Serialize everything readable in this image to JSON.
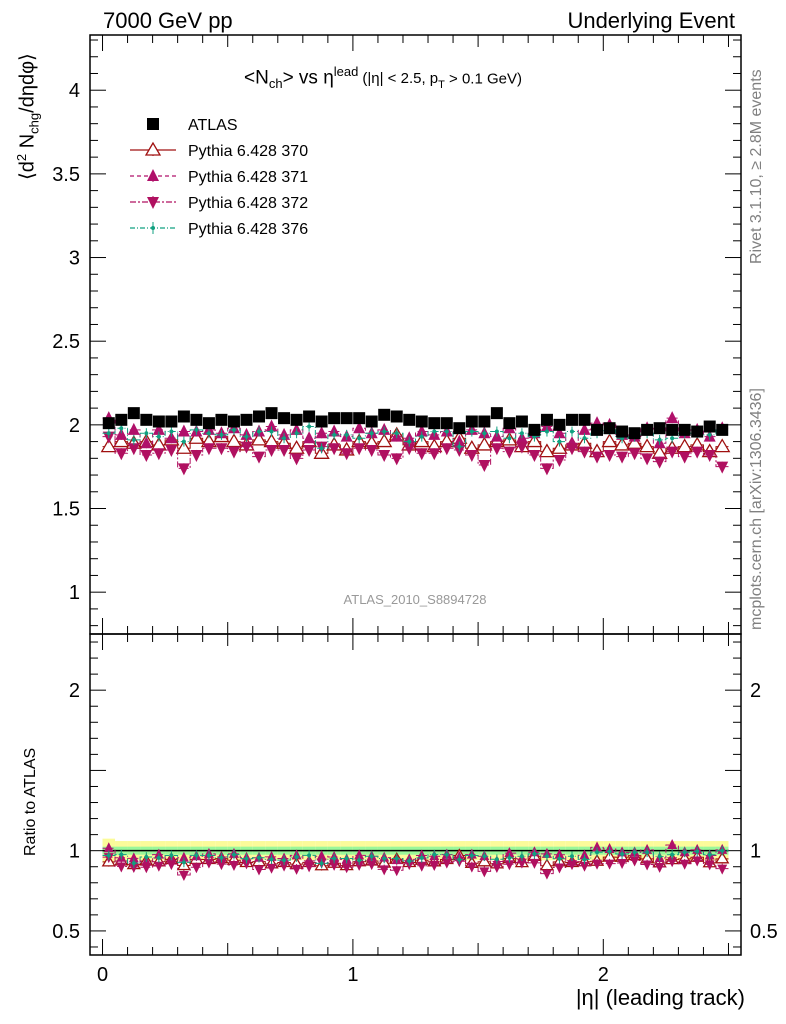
{
  "header": {
    "left": "7000 GeV pp",
    "right": "Underlying Event"
  },
  "side_labels": {
    "rivet": "Rivet 3.1.10, ≥ 2.8M events",
    "mcplots": "mcplots.cern.ch [arXiv:1306.3436]"
  },
  "chart_data": {
    "type": "scatter",
    "title_parts": {
      "a": "<N",
      "a_sub": "ch",
      "b": "> vs η",
      "b_sup": "lead",
      "c": "(|η| < 2.5, p",
      "c_sub": "T",
      "d": " > 0.1 GeV)"
    },
    "ylabel_main": "⟨d² N_chg/dηdφ⟩",
    "ylabel_main_parts": {
      "a": "⟨d",
      "a_sup": "2",
      "b": " N",
      "b_sub": "chg",
      "c": "/dηdφ⟩"
    },
    "ylabel_ratio": "Ratio to ATLAS",
    "xlabel": "|η| (leading track)",
    "analysis_id": "ATLAS_2010_S8894728",
    "xlim": [
      -0.05,
      2.55
    ],
    "ylim_main": [
      0.75,
      4.33
    ],
    "ylim_ratio": [
      0.35,
      2.35
    ],
    "x_ticks": [
      0,
      1,
      2
    ],
    "y_ticks_main": [
      1,
      1.5,
      2,
      2.5,
      3,
      3.5,
      4
    ],
    "y_ticks_ratio": [
      0.5,
      1,
      2
    ],
    "x": [
      0.025,
      0.075,
      0.125,
      0.175,
      0.225,
      0.275,
      0.325,
      0.375,
      0.425,
      0.475,
      0.525,
      0.575,
      0.625,
      0.675,
      0.725,
      0.775,
      0.825,
      0.875,
      0.925,
      0.975,
      1.025,
      1.075,
      1.125,
      1.175,
      1.225,
      1.275,
      1.325,
      1.375,
      1.425,
      1.475,
      1.525,
      1.575,
      1.625,
      1.675,
      1.725,
      1.775,
      1.825,
      1.875,
      1.925,
      1.975,
      2.025,
      2.075,
      2.125,
      2.175,
      2.225,
      2.275,
      2.325,
      2.375,
      2.425,
      2.475
    ],
    "series": [
      {
        "name": "ATLAS",
        "marker": "square",
        "color": "#000000",
        "values": [
          2.01,
          2.03,
          2.07,
          2.03,
          2.02,
          2.02,
          2.05,
          2.03,
          2.01,
          2.03,
          2.02,
          2.03,
          2.05,
          2.07,
          2.04,
          2.03,
          2.05,
          2.02,
          2.04,
          2.04,
          2.04,
          2.02,
          2.06,
          2.05,
          2.03,
          2.02,
          2.01,
          2.01,
          1.98,
          2.02,
          2.02,
          2.07,
          2.01,
          2.02,
          1.97,
          2.03,
          2.0,
          2.03,
          2.03,
          1.97,
          1.98,
          1.96,
          1.95,
          1.97,
          1.98,
          1.97,
          1.97,
          1.96,
          1.99,
          1.97
        ]
      },
      {
        "name": "Pythia 6.428 370",
        "marker": "triangle-up-open",
        "color": "#a01010",
        "values": [
          1.87,
          1.9,
          1.89,
          1.9,
          1.88,
          1.91,
          1.86,
          1.92,
          1.9,
          1.93,
          1.9,
          1.88,
          1.91,
          1.9,
          1.89,
          1.86,
          1.9,
          1.83,
          1.88,
          1.85,
          1.9,
          1.89,
          1.9,
          1.94,
          1.88,
          1.9,
          1.87,
          1.9,
          1.92,
          1.86,
          1.88,
          1.9,
          1.91,
          1.87,
          1.9,
          1.84,
          1.86,
          1.88,
          1.89,
          1.84,
          1.9,
          1.88,
          1.89,
          1.87,
          1.83,
          1.86,
          1.87,
          1.88,
          1.84,
          1.87
        ]
      },
      {
        "name": "Pythia 6.428 371",
        "marker": "triangle-up",
        "color": "#b0106a",
        "values": [
          2.04,
          1.94,
          1.97,
          1.89,
          1.97,
          1.92,
          1.96,
          1.96,
          1.97,
          1.95,
          1.98,
          1.94,
          1.96,
          1.99,
          1.94,
          1.97,
          1.92,
          1.95,
          1.96,
          1.93,
          1.98,
          1.95,
          1.97,
          1.93,
          1.92,
          1.96,
          1.94,
          1.96,
          1.9,
          1.97,
          1.95,
          1.93,
          1.98,
          1.92,
          1.95,
          1.99,
          1.95,
          1.89,
          1.97,
          2.01,
          2.0,
          1.94,
          1.93,
          1.98,
          1.89,
          2.04,
          1.95,
          1.97,
          1.93,
          1.98
        ]
      },
      {
        "name": "Pythia 6.428 372",
        "marker": "triangle-down",
        "color": "#b01060",
        "values": [
          1.93,
          1.83,
          1.86,
          1.82,
          1.83,
          1.85,
          1.74,
          1.82,
          1.86,
          1.86,
          1.84,
          1.87,
          1.81,
          1.85,
          1.85,
          1.8,
          1.85,
          1.87,
          1.86,
          1.83,
          1.86,
          1.85,
          1.82,
          1.8,
          1.86,
          1.83,
          1.83,
          1.86,
          1.85,
          1.82,
          1.76,
          1.86,
          1.84,
          1.87,
          1.82,
          1.74,
          1.79,
          1.86,
          1.84,
          1.81,
          1.82,
          1.81,
          1.83,
          1.8,
          1.78,
          1.84,
          1.81,
          1.84,
          1.82,
          1.75
        ]
      },
      {
        "name": "Pythia 6.428 376",
        "marker": "dot",
        "color": "#10a080",
        "values": [
          1.95,
          1.98,
          1.91,
          1.95,
          1.93,
          1.96,
          1.9,
          1.97,
          1.95,
          1.94,
          1.97,
          1.93,
          1.96,
          1.96,
          1.92,
          1.95,
          1.99,
          1.86,
          1.94,
          1.94,
          1.92,
          1.95,
          1.96,
          1.95,
          1.9,
          1.93,
          1.96,
          1.96,
          1.87,
          1.96,
          1.95,
          1.96,
          1.92,
          1.95,
          1.93,
          1.96,
          1.9,
          1.96,
          1.92,
          1.95,
          1.97,
          1.92,
          1.93,
          1.95,
          1.91,
          1.92,
          1.95,
          1.95,
          1.94,
          1.97
        ]
      }
    ],
    "band_colors": {
      "outer": "#fbfb9a",
      "inner": "#9af79a"
    },
    "legend_position": "top-left"
  }
}
